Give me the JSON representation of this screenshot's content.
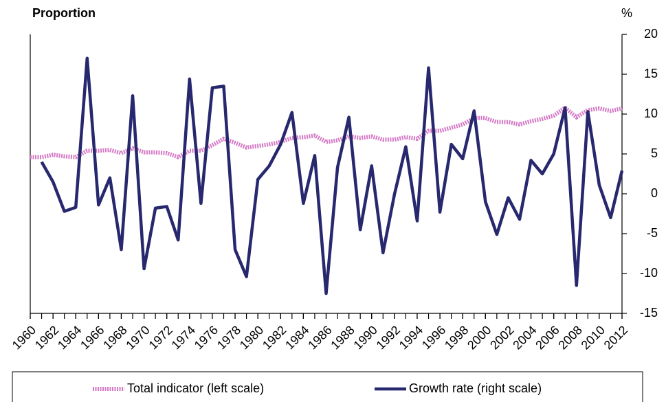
{
  "chart_data": {
    "type": "line",
    "y_label": "Proportion",
    "y2_label": "%",
    "x": [
      1960,
      1961,
      1962,
      1963,
      1964,
      1965,
      1966,
      1967,
      1968,
      1969,
      1970,
      1971,
      1972,
      1973,
      1974,
      1975,
      1976,
      1977,
      1978,
      1979,
      1980,
      1981,
      1982,
      1983,
      1984,
      1985,
      1986,
      1987,
      1988,
      1989,
      1990,
      1991,
      1992,
      1993,
      1994,
      1995,
      1996,
      1997,
      1998,
      1999,
      2000,
      2001,
      2002,
      2003,
      2004,
      2005,
      2006,
      2007,
      2008,
      2009,
      2010,
      2011,
      2012
    ],
    "xlim": [
      1960,
      2012
    ],
    "xticks": [
      1960,
      1962,
      1964,
      1966,
      1968,
      1970,
      1972,
      1974,
      1976,
      1978,
      1980,
      1982,
      1984,
      1986,
      1988,
      1990,
      1992,
      1994,
      1996,
      1998,
      2000,
      2002,
      2004,
      2006,
      2008,
      2010,
      2012
    ],
    "ylim": [
      -15,
      20
    ],
    "y2lim": [
      -15,
      20
    ],
    "y2ticks": [
      -15,
      -10,
      -5,
      0,
      5,
      10,
      15,
      20
    ],
    "series": [
      {
        "name": "Total indicator (left scale)",
        "color": "#d57ac6",
        "values": [
          4.6,
          4.6,
          4.9,
          4.7,
          4.6,
          5.4,
          5.4,
          5.5,
          5.1,
          5.7,
          5.2,
          5.2,
          5.1,
          4.6,
          5.4,
          5.4,
          6.1,
          6.9,
          6.4,
          5.8,
          6.0,
          6.2,
          6.5,
          7.0,
          7.1,
          7.3,
          6.5,
          6.7,
          7.2,
          7.0,
          7.2,
          6.8,
          6.8,
          7.1,
          6.9,
          7.9,
          7.9,
          8.3,
          8.7,
          9.5,
          9.5,
          9.0,
          9.0,
          8.7,
          9.1,
          9.4,
          9.8,
          10.8,
          9.6,
          10.5,
          10.7,
          10.4,
          10.7
        ]
      },
      {
        "name": "Growth rate (right scale)",
        "color": "#27286e",
        "axis": "y2",
        "values": [
          null,
          4,
          1.5,
          -2.2,
          -1.7,
          17,
          -1.4,
          2,
          -7,
          12.3,
          -9.4,
          -1.8,
          -1.6,
          -5.8,
          14.4,
          -1.2,
          13.3,
          13.5,
          -7,
          -10.4,
          1.8,
          3.5,
          6.2,
          10.2,
          -1.2,
          4.8,
          -12.5,
          3.3,
          9.6,
          -4.5,
          3.5,
          -7.4,
          -0.1,
          5.9,
          -3.4,
          15.8,
          -2.3,
          6.2,
          4.4,
          10.4,
          -1,
          -5.1,
          -0.5,
          -3.2,
          4.2,
          2.5,
          5,
          10.8,
          -11.5,
          10.3,
          1.1,
          -3,
          2.9
        ]
      }
    ]
  }
}
